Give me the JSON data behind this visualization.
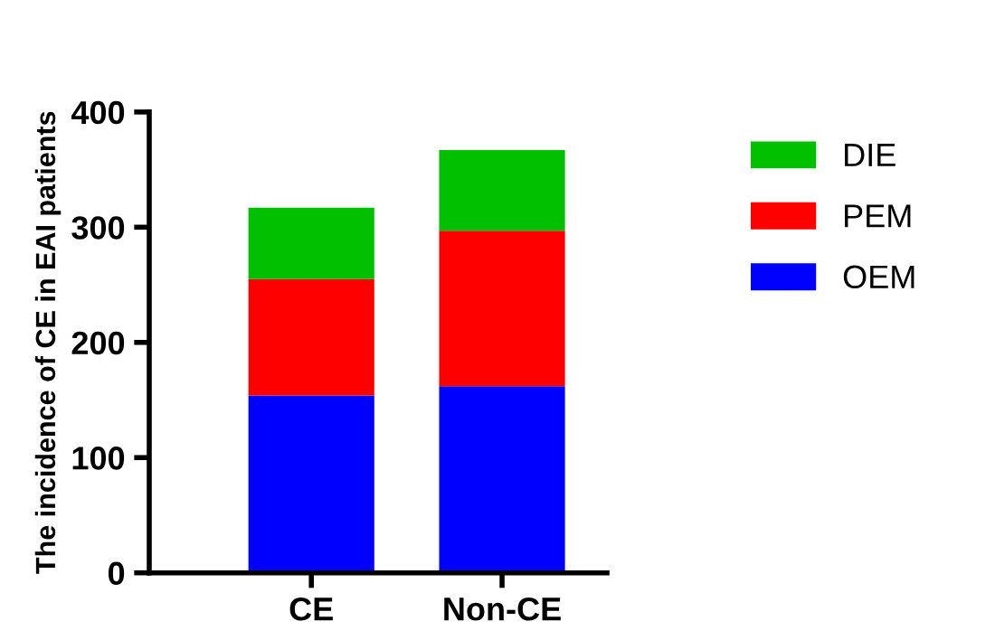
{
  "chart_data": {
    "type": "bar",
    "stacked": true,
    "ylabel": "The incidence of CE in EAI patients",
    "categories": [
      "CE",
      "Non-CE"
    ],
    "series": [
      {
        "name": "OEM",
        "color": "#0000ff",
        "values": [
          154,
          162
        ]
      },
      {
        "name": "PEM",
        "color": "#ff0000",
        "values": [
          101,
          135
        ]
      },
      {
        "name": "DIE",
        "color": "#00c000",
        "values": [
          62,
          70
        ]
      }
    ],
    "ylim": [
      0,
      400
    ],
    "yticks": [
      0,
      100,
      200,
      300,
      400
    ],
    "grid": false,
    "legend": "top right"
  }
}
